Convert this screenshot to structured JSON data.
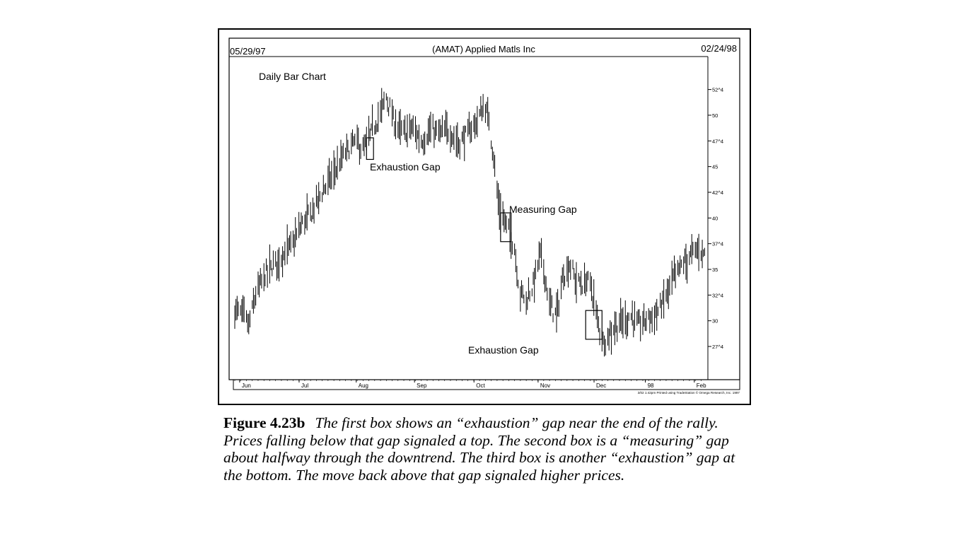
{
  "header": {
    "start_date": "05/29/97",
    "title": "(AMAT) Applied Matls Inc",
    "end_date": "02/24/98"
  },
  "chart_data": {
    "type": "ohlc-bar",
    "title": "(AMAT) Applied Matls Inc",
    "subtitle": "Daily Bar Chart",
    "x_tick_labels": [
      "Jun",
      "Jul",
      "Aug",
      "Sep",
      "Oct",
      "Nov",
      "Dec",
      "98",
      "Feb"
    ],
    "y_tick_labels": [
      "52^4",
      "50",
      "47^4",
      "45",
      "42^4",
      "40",
      "37^4",
      "35",
      "32^4",
      "30",
      "27^4"
    ],
    "y_tick_values": [
      52.5,
      50,
      47.5,
      45,
      42.5,
      40,
      37.5,
      35,
      32.5,
      30,
      27.5
    ],
    "ylim": [
      24.75,
      55.5
    ],
    "footer_text": "3/02 1:42pm Printed using TradeStation © Omega Research, Inc. 1997",
    "annotations": [
      {
        "label": "Exhaustion Gap",
        "box_index": [
          113,
          119
        ],
        "box_price": [
          45.7,
          47.8
        ]
      },
      {
        "label": "Measuring Gap",
        "box_index": [
          228,
          237
        ],
        "box_price": [
          37.7,
          40.5
        ]
      },
      {
        "label": "Exhaustion Gap",
        "box_index": [
          301,
          315
        ],
        "box_price": [
          28.2,
          31.0
        ]
      }
    ],
    "anchors": [
      [
        0,
        31.0
      ],
      [
        8,
        30.5
      ],
      [
        12,
        29.5
      ],
      [
        18,
        32.5
      ],
      [
        26,
        34.5
      ],
      [
        34,
        35.5
      ],
      [
        42,
        36.5
      ],
      [
        50,
        37.5
      ],
      [
        58,
        39.5
      ],
      [
        66,
        40.5
      ],
      [
        72,
        42.0
      ],
      [
        80,
        43.5
      ],
      [
        88,
        45.0
      ],
      [
        96,
        46.5
      ],
      [
        104,
        47.5
      ],
      [
        110,
        46.5
      ],
      [
        118,
        48.5
      ],
      [
        126,
        50.5
      ],
      [
        130,
        51.8
      ],
      [
        136,
        49.5
      ],
      [
        144,
        48.2
      ],
      [
        152,
        48.8
      ],
      [
        160,
        47.5
      ],
      [
        168,
        48.5
      ],
      [
        176,
        48.2
      ],
      [
        184,
        48.5
      ],
      [
        192,
        47.3
      ],
      [
        200,
        48.2
      ],
      [
        208,
        49.5
      ],
      [
        214,
        51.0
      ],
      [
        218,
        49.5
      ],
      [
        222,
        46.0
      ],
      [
        226,
        41.5
      ],
      [
        230,
        40.0
      ],
      [
        236,
        38.5
      ],
      [
        240,
        37.0
      ],
      [
        244,
        33.0
      ],
      [
        250,
        32.0
      ],
      [
        256,
        33.5
      ],
      [
        262,
        36.5
      ],
      [
        266,
        34.5
      ],
      [
        270,
        31.5
      ],
      [
        276,
        30.5
      ],
      [
        282,
        34.5
      ],
      [
        288,
        35.5
      ],
      [
        292,
        34.0
      ],
      [
        298,
        33.5
      ],
      [
        304,
        34.0
      ],
      [
        308,
        32.0
      ],
      [
        312,
        29.5
      ],
      [
        316,
        28.0
      ],
      [
        320,
        28.5
      ],
      [
        326,
        29.5
      ],
      [
        334,
        30.0
      ],
      [
        340,
        30.5
      ],
      [
        346,
        29.5
      ],
      [
        352,
        30.0
      ],
      [
        358,
        30.5
      ],
      [
        364,
        31.0
      ],
      [
        370,
        32.5
      ],
      [
        376,
        34.0
      ],
      [
        384,
        35.5
      ],
      [
        392,
        36.5
      ],
      [
        398,
        37.0
      ],
      [
        404,
        36.5
      ]
    ]
  },
  "caption": {
    "label": "Figure 4.23b",
    "text": "The first box shows an “exhaustion” gap near the end of the rally. Prices falling below that gap signaled a top. The second box is a “measuring” gap about halfway through the downtrend. The third box is another “exhaustion” gap at the bottom. The move back above that gap signaled higher prices."
  }
}
